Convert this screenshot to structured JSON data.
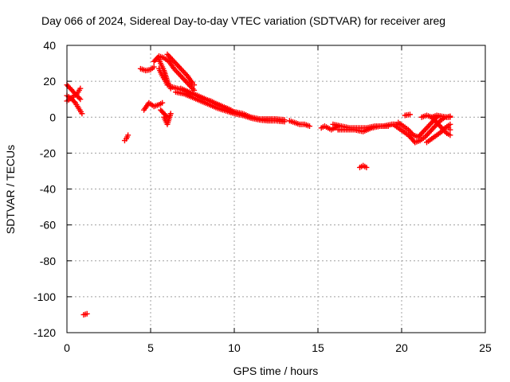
{
  "chart_data": {
    "type": "scatter",
    "title": "Day 066 of 2024, Sidereal Day-to-day VTEC variation (SDTVAR) for receiver areg",
    "xlabel": "GPS time / hours",
    "ylabel": "SDTVAR / TECUs",
    "xlim": [
      0,
      25
    ],
    "ylim": [
      -120,
      40
    ],
    "xticks": [
      0,
      5,
      10,
      15,
      20,
      25
    ],
    "yticks": [
      -120,
      -100,
      -80,
      -60,
      -40,
      -20,
      0,
      20,
      40
    ],
    "xtick_labels": [
      "0",
      "5",
      "10",
      "15",
      "20",
      "25"
    ],
    "ytick_labels": [
      "-120",
      "-100",
      "-80",
      "-60",
      "-40",
      "-20",
      "0",
      "20",
      "40"
    ],
    "grid": true,
    "marker": "+",
    "series": [
      {
        "name": "SDTVAR",
        "color": "#ff0000",
        "polylines": [
          [
            [
              0.0,
              18
            ],
            [
              0.2,
              16
            ],
            [
              0.4,
              14
            ],
            [
              0.6,
              12
            ],
            [
              0.8,
              10
            ]
          ],
          [
            [
              0.0,
              12
            ],
            [
              0.3,
              10
            ],
            [
              0.5,
              8
            ],
            [
              0.7,
              5
            ],
            [
              0.9,
              2
            ]
          ],
          [
            [
              0.0,
              9
            ],
            [
              0.3,
              11
            ],
            [
              0.6,
              13
            ],
            [
              0.8,
              16
            ]
          ],
          [
            [
              3.45,
              -13
            ],
            [
              3.55,
              -12
            ],
            [
              3.65,
              -10
            ]
          ],
          [
            [
              1.0,
              -110
            ],
            [
              1.2,
              -109.5
            ]
          ],
          [
            [
              4.4,
              27
            ],
            [
              4.7,
              26
            ],
            [
              5.0,
              26.5
            ],
            [
              5.2,
              28
            ]
          ],
          [
            [
              4.6,
              4
            ],
            [
              4.9,
              8
            ],
            [
              5.2,
              6
            ],
            [
              5.5,
              7
            ],
            [
              5.7,
              8
            ]
          ],
          [
            [
              5.45,
              33
            ],
            [
              5.6,
              30
            ],
            [
              5.8,
              26
            ],
            [
              6.0,
              20
            ],
            [
              6.2,
              16
            ]
          ],
          [
            [
              5.5,
              27
            ],
            [
              5.7,
              23
            ],
            [
              5.9,
              20
            ],
            [
              6.0,
              18
            ]
          ],
          [
            [
              5.2,
              31
            ],
            [
              5.5,
              34
            ],
            [
              5.8,
              33
            ],
            [
              6.1,
              31
            ]
          ],
          [
            [
              5.8,
              0
            ],
            [
              5.9,
              -2
            ],
            [
              6.0,
              -4
            ],
            [
              6.1,
              -1
            ],
            [
              6.2,
              2
            ]
          ],
          [
            [
              5.6,
              4
            ],
            [
              5.8,
              2
            ],
            [
              6.0,
              0
            ]
          ],
          [
            [
              6.0,
              35
            ],
            [
              6.3,
              32
            ],
            [
              6.6,
              29
            ],
            [
              6.9,
              26
            ],
            [
              7.2,
              23
            ],
            [
              7.5,
              19
            ],
            [
              7.6,
              18
            ]
          ],
          [
            [
              6.1,
              31
            ],
            [
              6.4,
              27
            ],
            [
              6.7,
              24
            ],
            [
              7.0,
              21
            ],
            [
              7.3,
              18
            ],
            [
              7.6,
              15
            ]
          ],
          [
            [
              6.2,
              17
            ],
            [
              6.6,
              16
            ],
            [
              7.0,
              15
            ],
            [
              7.4,
              13
            ],
            [
              7.8,
              12
            ],
            [
              8.2,
              10
            ],
            [
              8.6,
              9
            ],
            [
              9.0,
              7
            ],
            [
              9.5,
              5
            ],
            [
              10.0,
              3
            ],
            [
              10.5,
              2
            ],
            [
              11.0,
              0
            ],
            [
              11.5,
              -1
            ],
            [
              12.0,
              -1
            ],
            [
              12.5,
              -1
            ],
            [
              13.0,
              -1.5
            ]
          ],
          [
            [
              6.5,
              14
            ],
            [
              7.0,
              13
            ],
            [
              7.5,
              11
            ],
            [
              8.0,
              9
            ],
            [
              8.5,
              7
            ],
            [
              9.0,
              5
            ],
            [
              9.5,
              3.5
            ],
            [
              10.0,
              2
            ],
            [
              10.5,
              1
            ],
            [
              11.0,
              -0.5
            ],
            [
              11.5,
              -1.5
            ],
            [
              12.0,
              -2
            ],
            [
              12.5,
              -2
            ],
            [
              13.0,
              -2.5
            ]
          ],
          [
            [
              6.8,
              16
            ],
            [
              7.3,
              14
            ],
            [
              7.8,
              12
            ],
            [
              8.3,
              10
            ],
            [
              8.8,
              8
            ],
            [
              9.3,
              6
            ],
            [
              9.8,
              4
            ]
          ],
          [
            [
              13.3,
              -2
            ],
            [
              13.6,
              -3
            ],
            [
              13.9,
              -4
            ],
            [
              14.2,
              -4
            ],
            [
              14.5,
              -5
            ]
          ],
          [
            [
              15.2,
              -6
            ],
            [
              15.4,
              -5
            ],
            [
              15.6,
              -6
            ],
            [
              15.8,
              -7
            ],
            [
              16.0,
              -6
            ],
            [
              16.2,
              -5
            ]
          ],
          [
            [
              15.9,
              -4
            ],
            [
              16.4,
              -5
            ],
            [
              16.9,
              -6
            ],
            [
              17.4,
              -6
            ],
            [
              17.9,
              -6
            ],
            [
              18.4,
              -5
            ],
            [
              18.9,
              -5
            ],
            [
              19.4,
              -4
            ],
            [
              19.9,
              -4
            ]
          ],
          [
            [
              16.2,
              -7
            ],
            [
              16.7,
              -7
            ],
            [
              17.2,
              -7
            ],
            [
              17.7,
              -8
            ],
            [
              18.2,
              -6
            ],
            [
              18.7,
              -5
            ],
            [
              19.2,
              -5
            ]
          ],
          [
            [
              17.5,
              -28
            ],
            [
              17.7,
              -27
            ],
            [
              17.9,
              -28
            ]
          ],
          [
            [
              19.5,
              -4
            ],
            [
              19.8,
              -6
            ],
            [
              20.1,
              -8
            ],
            [
              20.4,
              -10
            ],
            [
              20.6,
              -12
            ],
            [
              20.8,
              -14
            ]
          ],
          [
            [
              19.8,
              -3
            ],
            [
              20.1,
              -5
            ],
            [
              20.4,
              -7
            ],
            [
              20.7,
              -10
            ],
            [
              21.0,
              -11
            ]
          ],
          [
            [
              20.2,
              1
            ],
            [
              20.5,
              1.5
            ]
          ],
          [
            [
              20.8,
              -14
            ],
            [
              21.1,
              -13
            ],
            [
              21.4,
              -11
            ],
            [
              21.7,
              -8
            ],
            [
              22.0,
              -5
            ],
            [
              22.3,
              -2
            ],
            [
              22.6,
              0
            ],
            [
              22.9,
              0
            ]
          ],
          [
            [
              21.0,
              -11
            ],
            [
              21.3,
              -8
            ],
            [
              21.6,
              -5
            ],
            [
              21.9,
              -2
            ],
            [
              22.1,
              0
            ]
          ],
          [
            [
              21.2,
              0
            ],
            [
              21.5,
              1
            ],
            [
              21.8,
              0
            ],
            [
              22.1,
              -3
            ],
            [
              22.4,
              -6
            ],
            [
              22.7,
              -9
            ],
            [
              22.9,
              -10
            ]
          ],
          [
            [
              21.5,
              -14
            ],
            [
              21.8,
              -12
            ],
            [
              22.1,
              -10
            ],
            [
              22.4,
              -8
            ],
            [
              22.6,
              -6
            ],
            [
              22.9,
              -4
            ]
          ],
          [
            [
              21.8,
              0
            ],
            [
              22.1,
              1
            ],
            [
              22.4,
              0.5
            ],
            [
              22.7,
              0
            ],
            [
              22.9,
              0.5
            ]
          ],
          [
            [
              22.8,
              -6
            ],
            [
              22.9,
              -7
            ]
          ]
        ]
      }
    ]
  }
}
